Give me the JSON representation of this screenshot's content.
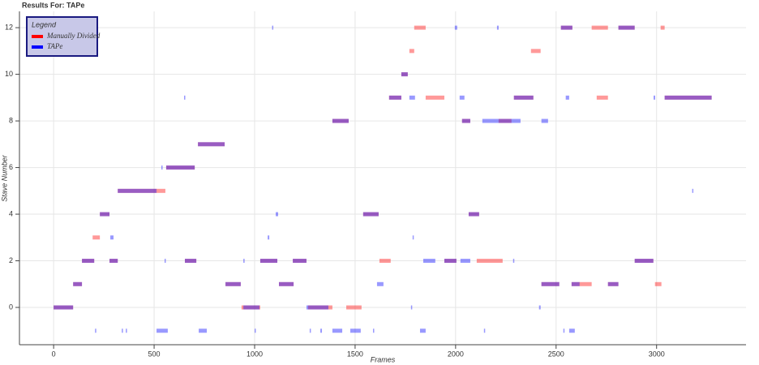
{
  "chart_data": {
    "type": "segments",
    "title": "Results For: TAPe",
    "x_label": "Frames",
    "y_label": "Stave Number",
    "legend_title": "Legend",
    "xlim": [
      -170,
      3445
    ],
    "ylim": [
      -1.6,
      12.7
    ],
    "xticks": [
      0,
      500,
      1000,
      1500,
      2000,
      2500,
      3000
    ],
    "yticks": [
      0,
      2,
      4,
      6,
      8,
      10,
      12
    ],
    "grid": true,
    "legend": "top-left",
    "series": [
      {
        "name": "Manually Divided",
        "color": "#ff0000",
        "starts": [
          0,
          935,
          1266,
          1456,
          97,
          855,
          1121,
          2427,
          2577,
          2758,
          2992,
          141,
          278,
          653,
          1028,
          1190,
          1621,
          1944,
          2105,
          2891,
          194,
          230,
          1540,
          2065,
          319,
          560,
          718,
          1387,
          2032,
          2214,
          1669,
          1851,
          2290,
          2702,
          3040,
          1730,
          1770,
          2375,
          1794,
          2524,
          2677,
          2810,
          3020
        ],
        "ends": [
          97,
          1028,
          1387,
          1532,
          141,
          931,
          1194,
          2516,
          2677,
          2810,
          3024,
          202,
          319,
          710,
          1113,
          1258,
          1677,
          2004,
          2234,
          2984,
          230,
          278,
          1617,
          2117,
          556,
          702,
          851,
          1468,
          2073,
          2278,
          1730,
          1944,
          2387,
          2758,
          3274,
          1762,
          1794,
          2423,
          1851,
          2581,
          2758,
          2891,
          3040
        ],
        "values": [
          0,
          0,
          0,
          0,
          1,
          1,
          1,
          1,
          1,
          1,
          1,
          2,
          2,
          2,
          2,
          2,
          2,
          2,
          2,
          2,
          3,
          4,
          4,
          4,
          5,
          6,
          7,
          8,
          8,
          8,
          9,
          9,
          9,
          9,
          9,
          10,
          11,
          11,
          12,
          12,
          12,
          12,
          12
        ]
      },
      {
        "name": "TAPe",
        "color": "#0000ff",
        "starts": [
          0,
          944,
          1258,
          1778,
          2415,
          206,
          339,
          359,
          512,
          722,
          1000,
          1274,
          1327,
          1387,
          1476,
          1589,
          1823,
          2141,
          2536,
          2565,
          97,
          855,
          1121,
          1609,
          2427,
          2577,
          2758,
          141,
          278,
          552,
          653,
          944,
          1028,
          1190,
          1839,
          1944,
          2024,
          2286,
          2891,
          282,
          1065,
          1786,
          230,
          1105,
          1540,
          2065,
          319,
          3177,
          536,
          560,
          718,
          1387,
          2032,
          2133,
          2427,
          649,
          1669,
          1770,
          2020,
          2290,
          2548,
          2985,
          3040,
          1730,
          1087,
          1996,
          2206,
          2524,
          2810
        ],
        "ends": [
          97,
          1024,
          1367,
          1782,
          2423,
          210,
          343,
          363,
          568,
          762,
          1004,
          1278,
          1335,
          1436,
          1528,
          1593,
          1851,
          2145,
          2540,
          2593,
          141,
          931,
          1194,
          1641,
          2516,
          2617,
          2810,
          202,
          319,
          556,
          710,
          948,
          1113,
          1258,
          1899,
          2004,
          2073,
          2290,
          2984,
          298,
          1073,
          1790,
          278,
          1117,
          1617,
          2117,
          512,
          3181,
          540,
          702,
          851,
          1468,
          2073,
          2323,
          2460,
          653,
          1730,
          1798,
          2044,
          2387,
          2565,
          2993,
          3274,
          1762,
          1089,
          2008,
          2214,
          2581,
          2891
        ],
        "values": [
          0,
          0,
          0,
          0,
          0,
          -1,
          -1,
          -1,
          -1,
          -1,
          -1,
          -1,
          -1,
          -1,
          -1,
          -1,
          -1,
          -1,
          -1,
          -1,
          1,
          1,
          1,
          1,
          1,
          1,
          1,
          2,
          2,
          2,
          2,
          2,
          2,
          2,
          2,
          2,
          2,
          2,
          2,
          3,
          3,
          3,
          4,
          4,
          4,
          4,
          5,
          5,
          6,
          6,
          7,
          8,
          8,
          8,
          8,
          9,
          9,
          9,
          9,
          9,
          9,
          9,
          9,
          10,
          12,
          12,
          12,
          12,
          12
        ]
      }
    ]
  }
}
